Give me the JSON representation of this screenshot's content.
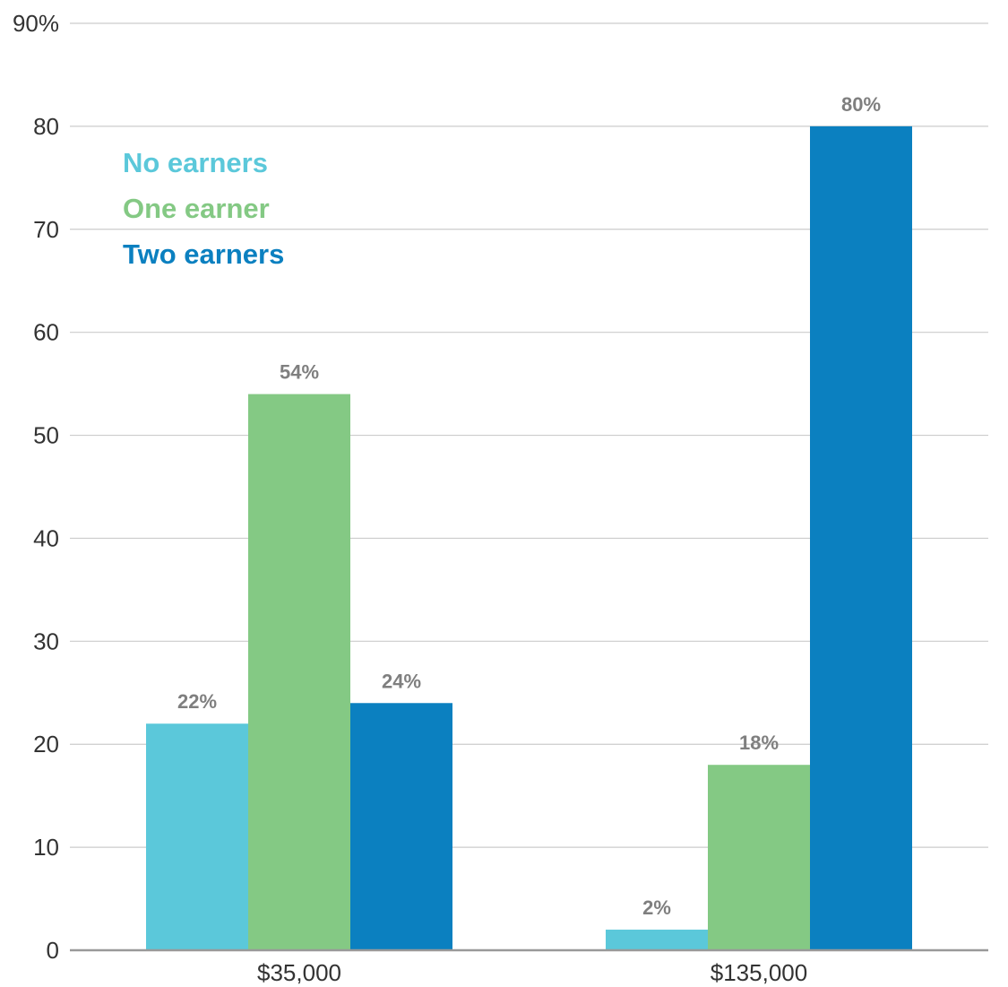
{
  "chart_data": {
    "type": "bar",
    "categories": [
      "$35,000",
      "$135,000"
    ],
    "series": [
      {
        "name": "No earners",
        "values": [
          22,
          2
        ],
        "color": "#5bc8da"
      },
      {
        "name": "One earner",
        "values": [
          54,
          18
        ],
        "color": "#84c984"
      },
      {
        "name": "Two earners",
        "values": [
          24,
          80
        ],
        "color": "#0b80c0"
      }
    ],
    "data_labels": [
      [
        "22%",
        "2%"
      ],
      [
        "54%",
        "18%"
      ],
      [
        "24%",
        "80%"
      ]
    ],
    "y_ticks": [
      0,
      10,
      20,
      30,
      40,
      50,
      60,
      70,
      80,
      90
    ],
    "y_tick_labels": [
      "0",
      "10",
      "20",
      "30",
      "40",
      "50",
      "60",
      "70",
      "80",
      "90%"
    ],
    "ylim": [
      0,
      90
    ],
    "grid": true,
    "legend_position": "top-left",
    "title": "",
    "xlabel": "",
    "ylabel": ""
  }
}
